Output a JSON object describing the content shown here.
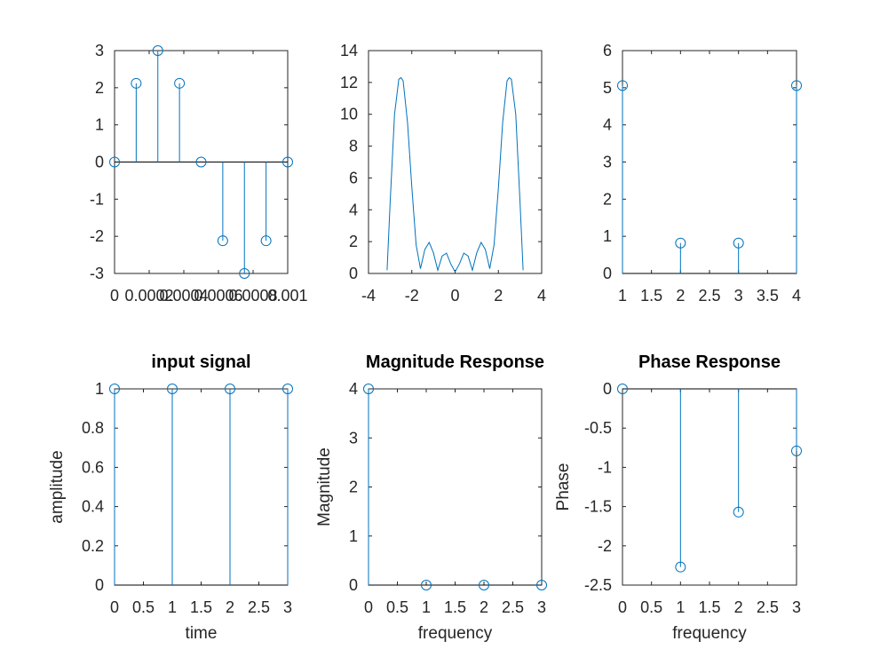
{
  "chart_data": [
    {
      "id": "p1",
      "type": "stem",
      "title": "",
      "xlabel": "",
      "ylabel": "",
      "x": [
        0,
        0.000125,
        0.00025,
        0.000375,
        0.0005,
        0.000625,
        0.00075,
        0.000875,
        0.001
      ],
      "y": [
        0,
        2.12,
        3,
        2.12,
        0,
        -2.12,
        -3,
        -2.12,
        0
      ],
      "xlim": [
        0,
        0.001
      ],
      "ylim": [
        -3,
        3
      ],
      "xticks": [
        0,
        0.0002,
        0.0004,
        0.0006,
        0.0008,
        0.001
      ],
      "xticklabels": [
        "0",
        "0.0002",
        "0.0004",
        "0.0006",
        "0.0008",
        "0.001"
      ],
      "yticks": [
        -3,
        -2,
        -1,
        0,
        1,
        2,
        3
      ],
      "yticklabels": [
        "-3",
        "-2",
        "-1",
        "0",
        "1",
        "2",
        "3"
      ],
      "color": "#0072bd"
    },
    {
      "id": "p2",
      "type": "line",
      "title": "",
      "xlabel": "",
      "ylabel": "",
      "x": [
        -3.1416,
        -3.0,
        -2.8,
        -2.6,
        -2.5,
        -2.4,
        -2.2,
        -2.0,
        -1.8,
        -1.6,
        -1.4,
        -1.2,
        -1.0,
        -0.8,
        -0.6,
        -0.4,
        -0.2,
        0,
        0.2,
        0.4,
        0.6,
        0.8,
        1.0,
        1.2,
        1.4,
        1.6,
        1.8,
        2.0,
        2.2,
        2.4,
        2.5,
        2.6,
        2.8,
        3.0,
        3.1416
      ],
      "y": [
        0.2,
        4.5,
        10.0,
        12.2,
        12.3,
        12.1,
        9.5,
        5.4,
        1.8,
        0.3,
        1.5,
        1.95,
        1.3,
        0.2,
        1.1,
        1.28,
        0.6,
        0.1,
        0.6,
        1.28,
        1.1,
        0.2,
        1.3,
        1.95,
        1.5,
        0.3,
        1.8,
        5.4,
        9.5,
        12.1,
        12.3,
        12.2,
        10.0,
        4.5,
        0.2
      ],
      "xlim": [
        -4,
        4
      ],
      "ylim": [
        0,
        14
      ],
      "xticks": [
        -4,
        -2,
        0,
        2,
        4
      ],
      "xticklabels": [
        "-4",
        "-2",
        "0",
        "2",
        "4"
      ],
      "yticks": [
        0,
        2,
        4,
        6,
        8,
        10,
        12,
        14
      ],
      "yticklabels": [
        "0",
        "2",
        "4",
        "6",
        "8",
        "10",
        "12",
        "14"
      ],
      "color": "#0072bd"
    },
    {
      "id": "p3",
      "type": "stem",
      "title": "",
      "xlabel": "",
      "ylabel": "",
      "x": [
        1,
        2,
        3,
        4
      ],
      "y": [
        5.06,
        0.82,
        0.82,
        5.06
      ],
      "xlim": [
        1,
        4
      ],
      "ylim": [
        0,
        6
      ],
      "xticks": [
        1,
        1.5,
        2,
        2.5,
        3,
        3.5,
        4
      ],
      "xticklabels": [
        "1",
        "1.5",
        "2",
        "2.5",
        "3",
        "3.5",
        "4"
      ],
      "yticks": [
        0,
        1,
        2,
        3,
        4,
        5,
        6
      ],
      "yticklabels": [
        "0",
        "1",
        "2",
        "3",
        "4",
        "5",
        "6"
      ],
      "color": "#0072bd"
    },
    {
      "id": "p4",
      "type": "stem",
      "title": "input signal",
      "xlabel": "time",
      "ylabel": "amplitude",
      "x": [
        0,
        1,
        2,
        3
      ],
      "y": [
        1,
        1,
        1,
        1
      ],
      "xlim": [
        0,
        3
      ],
      "ylim": [
        0,
        1
      ],
      "xticks": [
        0,
        0.5,
        1,
        1.5,
        2,
        2.5,
        3
      ],
      "xticklabels": [
        "0",
        "0.5",
        "1",
        "1.5",
        "2",
        "2.5",
        "3"
      ],
      "yticks": [
        0,
        0.2,
        0.4,
        0.6,
        0.8,
        1
      ],
      "yticklabels": [
        "0",
        "0.2",
        "0.4",
        "0.6",
        "0.8",
        "1"
      ],
      "color": "#0072bd"
    },
    {
      "id": "p5",
      "type": "stem",
      "title": "Magnitude Response",
      "xlabel": "frequency",
      "ylabel": "Magnitude",
      "x": [
        0,
        1,
        2,
        3
      ],
      "y": [
        4,
        0,
        0,
        0
      ],
      "xlim": [
        0,
        3
      ],
      "ylim": [
        0,
        4
      ],
      "xticks": [
        0,
        0.5,
        1,
        1.5,
        2,
        2.5,
        3
      ],
      "xticklabels": [
        "0",
        "0.5",
        "1",
        "1.5",
        "2",
        "2.5",
        "3"
      ],
      "yticks": [
        0,
        1,
        2,
        3,
        4
      ],
      "yticklabels": [
        "0",
        "1",
        "2",
        "3",
        "4"
      ],
      "color": "#0072bd"
    },
    {
      "id": "p6",
      "type": "stem",
      "title": "Phase Response",
      "xlabel": "frequency",
      "ylabel": "Phase",
      "x": [
        0,
        1,
        2,
        3
      ],
      "y": [
        0,
        -2.27,
        -1.57,
        -0.79
      ],
      "xlim": [
        0,
        3
      ],
      "ylim": [
        -2.5,
        0
      ],
      "xticks": [
        0,
        0.5,
        1,
        1.5,
        2,
        2.5,
        3
      ],
      "xticklabels": [
        "0",
        "0.5",
        "1",
        "1.5",
        "2",
        "2.5",
        "3"
      ],
      "yticks": [
        -2.5,
        -2,
        -1.5,
        -1,
        -0.5,
        0
      ],
      "yticklabels": [
        "-2.5",
        "-2",
        "-1.5",
        "-1",
        "-0.5",
        "0"
      ],
      "color": "#0072bd"
    }
  ]
}
